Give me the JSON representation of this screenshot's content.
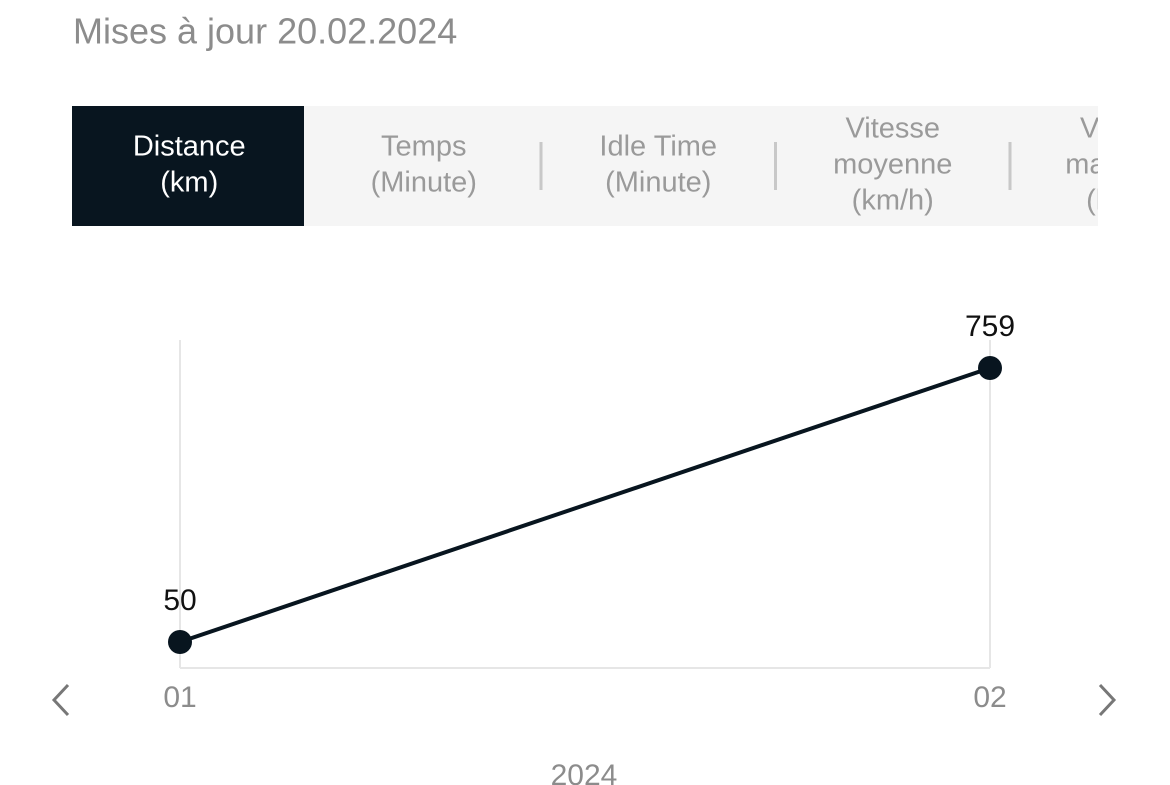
{
  "header": {
    "title": "Mises à jour 20.02.2024"
  },
  "tabs": [
    {
      "lines": [
        "Distance",
        "(km)"
      ],
      "active": true
    },
    {
      "lines": [
        "Temps",
        "(Minute)"
      ],
      "active": false
    },
    {
      "lines": [
        "Idle Time",
        "(Minute)"
      ],
      "active": false
    },
    {
      "lines": [
        "Vitesse",
        "moyenne",
        "(km/h)"
      ],
      "active": false
    },
    {
      "lines": [
        "Vitesse",
        "maximale",
        "(km/h)"
      ],
      "active": false
    }
  ],
  "chart_data": {
    "type": "line",
    "categories": [
      "01",
      "02"
    ],
    "values": [
      50,
      759
    ],
    "color": "#08151f",
    "xlabel": "2024"
  }
}
